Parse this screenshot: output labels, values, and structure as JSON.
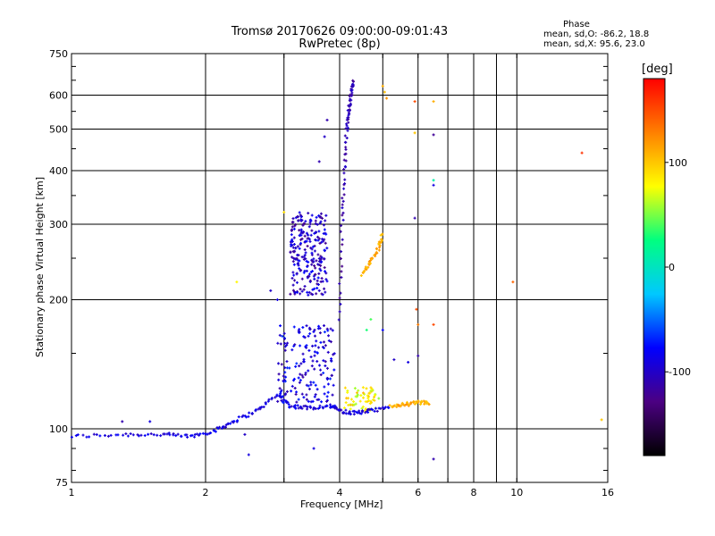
{
  "chart_data": {
    "type": "scatter",
    "title": "Tromsø 20170626 09:00:00-09:01:43",
    "subtitle": "RwPretec (8p)",
    "xlabel": "Frequency [MHz]",
    "ylabel": "Stationary phase Virtual Height [km]",
    "x_scale": "log",
    "y_scale": "log",
    "xlim": [
      1,
      16
    ],
    "ylim": [
      75,
      750
    ],
    "x_ticks": [
      1,
      2,
      4,
      6,
      8,
      10,
      16
    ],
    "x_minor_gridlines": [
      3,
      5,
      7,
      9
    ],
    "y_ticks": [
      75,
      100,
      200,
      300,
      400,
      500,
      600,
      750
    ],
    "grid": true,
    "stats": {
      "heading": "Phase",
      "line_o": "mean, sd,O: -86.2, 18.8",
      "line_x": "mean, sd,X:  95.6, 23.0"
    },
    "colorbar": {
      "label": "[deg]",
      "range": [
        -180,
        180
      ],
      "ticks": [
        100,
        0,
        -100
      ],
      "colors": [
        "#000000",
        "#4b0082",
        "#0000ff",
        "#00c8ff",
        "#00ff80",
        "#ffff00",
        "#ff8000",
        "#ff0000"
      ]
    },
    "series": [
      {
        "traces": [
          {
            "type": "line",
            "x": [
              1.0,
              1.3,
              1.6,
              1.85,
              2.1,
              2.3,
              2.6,
              2.9,
              3.1,
              3.4,
              3.8,
              4.0
            ],
            "y": [
              96,
              97,
              97,
              96,
              99,
              104,
              110,
              120,
              113,
              112,
              113,
              111
            ],
            "phase": -90
          },
          {
            "type": "line",
            "x": [
              4.0,
              4.05,
              4.1,
              4.15,
              4.2,
              4.25,
              4.3
            ],
            "y": [
              180,
              300,
              400,
              500,
              560,
              610,
              650
            ],
            "phase": -110
          },
          {
            "type": "cloud",
            "x": [
              3.1,
              3.75
            ],
            "y": [
              205,
              320
            ],
            "count": 240,
            "phase": -100
          },
          {
            "type": "cloud",
            "x": [
              2.9,
              3.9
            ],
            "y": [
              115,
              175
            ],
            "count": 170,
            "phase": -90
          },
          {
            "type": "cloud",
            "x": [
              4.1,
              4.9
            ],
            "y": [
              110,
              125
            ],
            "count": 60,
            "phase": 80
          },
          {
            "type": "line",
            "x": [
              4.5,
              4.7,
              4.9,
              5.0
            ],
            "y": [
              230,
              245,
              265,
              285
            ],
            "phase": 110
          },
          {
            "type": "line",
            "x": [
              4.0,
              4.3,
              4.7,
              5.2
            ],
            "y": [
              110,
              109,
              110,
              112
            ],
            "phase": -95
          },
          {
            "type": "line",
            "x": [
              5.2,
              5.6,
              6.0,
              6.4
            ],
            "y": [
              113,
              114,
              115,
              115
            ],
            "phase": 110
          }
        ],
        "points": [
          {
            "x": 1.3,
            "y": 104,
            "phase": -110
          },
          {
            "x": 1.5,
            "y": 104,
            "phase": -90
          },
          {
            "x": 2.45,
            "y": 97,
            "phase": -100
          },
          {
            "x": 2.5,
            "y": 87,
            "phase": -90
          },
          {
            "x": 2.35,
            "y": 220,
            "phase": 80
          },
          {
            "x": 2.8,
            "y": 210,
            "phase": -100
          },
          {
            "x": 2.9,
            "y": 200,
            "phase": -90
          },
          {
            "x": 3.0,
            "y": 320,
            "phase": 90
          },
          {
            "x": 3.5,
            "y": 90,
            "phase": -90
          },
          {
            "x": 3.6,
            "y": 420,
            "phase": -110
          },
          {
            "x": 3.7,
            "y": 480,
            "phase": -100
          },
          {
            "x": 3.75,
            "y": 525,
            "phase": -110
          },
          {
            "x": 4.6,
            "y": 170,
            "phase": 30
          },
          {
            "x": 4.7,
            "y": 180,
            "phase": 40
          },
          {
            "x": 5.0,
            "y": 630,
            "phase": 110
          },
          {
            "x": 5.05,
            "y": 610,
            "phase": 105
          },
          {
            "x": 5.1,
            "y": 590,
            "phase": 120
          },
          {
            "x": 5.0,
            "y": 170,
            "phase": -80
          },
          {
            "x": 5.3,
            "y": 145,
            "phase": -100
          },
          {
            "x": 5.7,
            "y": 143,
            "phase": -90
          },
          {
            "x": 5.9,
            "y": 580,
            "phase": 150
          },
          {
            "x": 5.9,
            "y": 490,
            "phase": 100
          },
          {
            "x": 5.9,
            "y": 310,
            "phase": -110
          },
          {
            "x": 5.95,
            "y": 190,
            "phase": 150
          },
          {
            "x": 6.0,
            "y": 175,
            "phase": 130
          },
          {
            "x": 6.0,
            "y": 148,
            "phase": -110
          },
          {
            "x": 6.5,
            "y": 580,
            "phase": 110
          },
          {
            "x": 6.5,
            "y": 485,
            "phase": -120
          },
          {
            "x": 6.5,
            "y": 380,
            "phase": 10
          },
          {
            "x": 6.5,
            "y": 370,
            "phase": -90
          },
          {
            "x": 6.5,
            "y": 175,
            "phase": 150
          },
          {
            "x": 6.5,
            "y": 85,
            "phase": -110
          },
          {
            "x": 9.8,
            "y": 220,
            "phase": 140
          },
          {
            "x": 14.0,
            "y": 440,
            "phase": 160
          },
          {
            "x": 15.5,
            "y": 105,
            "phase": 100
          }
        ]
      }
    ]
  }
}
